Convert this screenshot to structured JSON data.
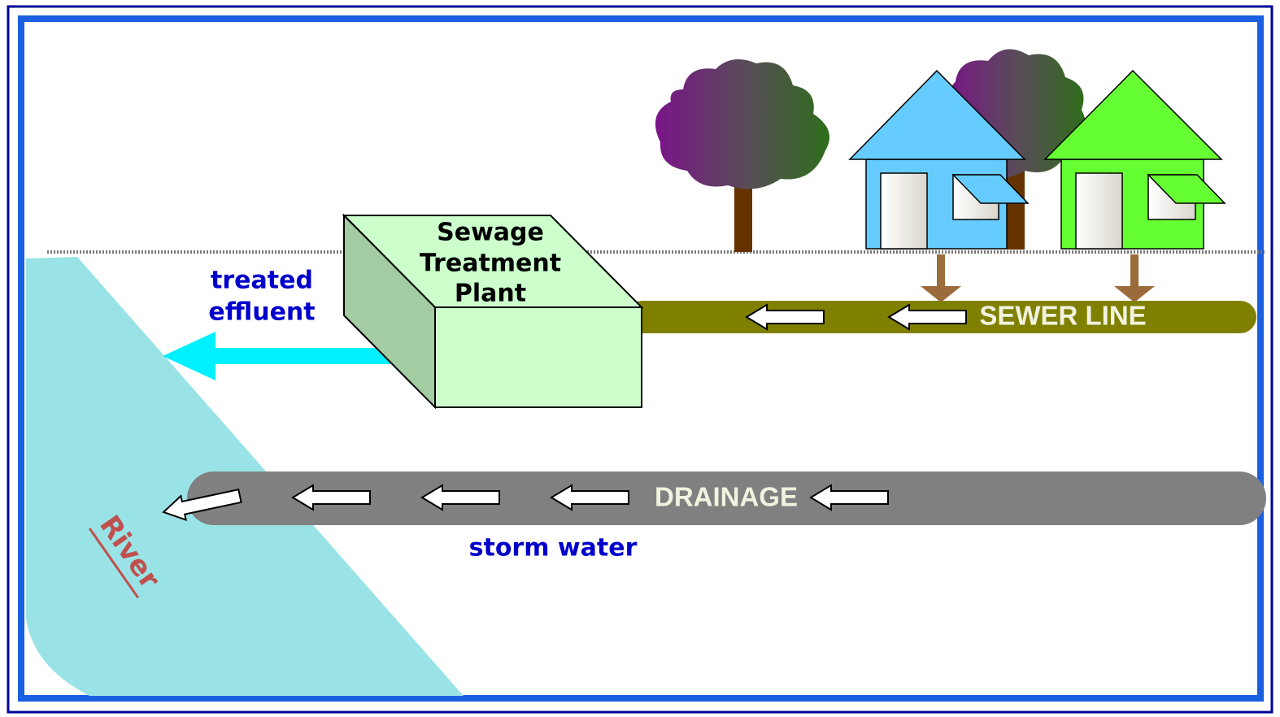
{
  "plant": {
    "label": [
      "Sewage",
      "Treatment",
      "Plant"
    ]
  },
  "effluent": {
    "label": [
      "treated",
      "effluent"
    ]
  },
  "sewer": {
    "label": "SEWER LINE"
  },
  "drainage": {
    "label": "DRAINAGE"
  },
  "storm": {
    "label": "storm water"
  },
  "river": {
    "label": "River"
  }
}
